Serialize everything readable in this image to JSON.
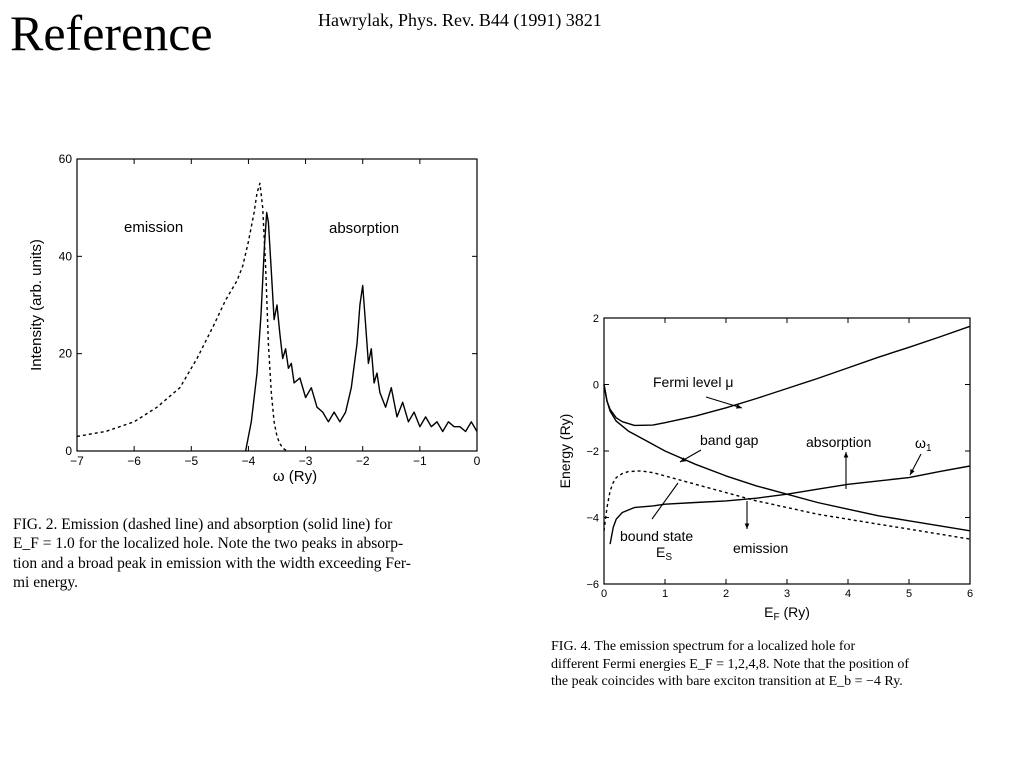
{
  "slide": {
    "title": "Reference",
    "citation": "Hawrylak, Phys. Rev. B44 (1991) 3821"
  },
  "fig2": {
    "caption_line1": "FIG. 2.  Emission (dashed line) and absorption (solid line) for",
    "caption_line2": "E_F = 1.0 for the localized hole.  Note the two peaks in absorp-",
    "caption_line3": "tion and a broad peak in emission with the width exceeding Fer-",
    "caption_line4": "mi energy."
  },
  "fig4": {
    "caption_line1": "FIG. 4.  The emission spectrum for a localized hole for",
    "caption_line2": "different Fermi energies E_F = 1,2,4,8.  Note that the position of",
    "caption_line3": "the peak coincides with bare exciton transition at E_b = −4 Ry."
  },
  "chart_data": [
    {
      "type": "line",
      "xlabel": "ω  (Ry)",
      "ylabel": "Intensity  (arb. units)",
      "xlim": [
        -7,
        0
      ],
      "ylim": [
        0,
        60
      ],
      "xticks": [
        -7,
        -6,
        -5,
        -4,
        -3,
        -2,
        -1,
        0
      ],
      "yticks": [
        0,
        20,
        40,
        60
      ],
      "annotations": [
        "emission",
        "absorption"
      ],
      "series": [
        {
          "style": "dashed",
          "x": [
            -7.0,
            -6.5,
            -6.0,
            -5.6,
            -5.2,
            -4.9,
            -4.6,
            -4.4,
            -4.2,
            -4.1,
            -4.0,
            -3.9,
            -3.85,
            -3.8,
            -3.75,
            -3.7,
            -3.65,
            -3.6,
            -3.55,
            -3.5,
            -3.45,
            -3.4,
            -3.35,
            -3.3
          ],
          "y": [
            3,
            4,
            6,
            9,
            13,
            19,
            26,
            31,
            35,
            38,
            43,
            49,
            53,
            55,
            50,
            38,
            22,
            12,
            6,
            3,
            1.5,
            0.6,
            0.2,
            0
          ]
        },
        {
          "style": "solid",
          "x": [
            -4.05,
            -3.95,
            -3.85,
            -3.78,
            -3.72,
            -3.68,
            -3.65,
            -3.6,
            -3.55,
            -3.5,
            -3.45,
            -3.4,
            -3.35,
            -3.3,
            -3.25,
            -3.2,
            -3.1,
            -3.0,
            -2.9,
            -2.8,
            -2.7,
            -2.6,
            -2.5,
            -2.4,
            -2.3,
            -2.2,
            -2.1,
            -2.05,
            -2.0,
            -1.95,
            -1.9,
            -1.85,
            -1.8,
            -1.75,
            -1.7,
            -1.6,
            -1.5,
            -1.4,
            -1.3,
            -1.2,
            -1.1,
            -1.0,
            -0.9,
            -0.8,
            -0.7,
            -0.6,
            -0.5,
            -0.4,
            -0.3,
            -0.2,
            -0.1,
            0.0
          ],
          "y": [
            0,
            6,
            16,
            28,
            42,
            49,
            47,
            37,
            27,
            30,
            24,
            19,
            21,
            17,
            18,
            14,
            15,
            11,
            13,
            9,
            8,
            6,
            8,
            6,
            8,
            13,
            22,
            30,
            34,
            26,
            18,
            21,
            14,
            16,
            12,
            9,
            13,
            7,
            10,
            6,
            8,
            5,
            7,
            5,
            6,
            4,
            6,
            5,
            5,
            4,
            6,
            4
          ]
        }
      ]
    },
    {
      "type": "line",
      "xlabel": "E_F (Ry)",
      "ylabel": "Energy (Ry)",
      "xlim": [
        0,
        6
      ],
      "ylim": [
        -6,
        2
      ],
      "xticks": [
        0,
        1,
        2,
        3,
        4,
        5,
        6
      ],
      "yticks": [
        -6,
        -4,
        -2,
        0,
        2
      ],
      "annotations": [
        "Fermi level μ",
        "band gap",
        "absorption",
        "ω1",
        "bound state",
        "E_S",
        "emission"
      ],
      "series": [
        {
          "style": "solid",
          "x": [
            0,
            0.05,
            0.1,
            0.2,
            0.3,
            0.5,
            0.8,
            1.0,
            1.5,
            2.0,
            2.5,
            3.0,
            3.5,
            4.0,
            4.5,
            5.0,
            5.5,
            6.0
          ],
          "y": [
            0,
            -0.5,
            -0.75,
            -1.0,
            -1.12,
            -1.23,
            -1.22,
            -1.15,
            -0.95,
            -0.7,
            -0.42,
            -0.12,
            0.18,
            0.5,
            0.82,
            1.12,
            1.43,
            1.75
          ]
        },
        {
          "style": "solid",
          "x": [
            0,
            0.05,
            0.1,
            0.2,
            0.4,
            0.7,
            1.0,
            1.5,
            2.0,
            2.5,
            3.0,
            3.5,
            4.0,
            4.5,
            5.0,
            5.5,
            6.0
          ],
          "y": [
            0,
            -0.5,
            -0.8,
            -1.1,
            -1.4,
            -1.7,
            -2.0,
            -2.4,
            -2.75,
            -3.05,
            -3.3,
            -3.55,
            -3.75,
            -3.95,
            -4.1,
            -4.25,
            -4.4
          ]
        },
        {
          "style": "solid",
          "x": [
            0.1,
            0.15,
            0.2,
            0.3,
            0.5,
            0.8,
            1.0,
            1.5,
            2.0,
            2.5,
            3.0,
            3.5,
            4.0,
            4.5,
            5.0,
            5.5,
            6.0
          ],
          "y": [
            -4.8,
            -4.3,
            -4.05,
            -3.85,
            -3.7,
            -3.65,
            -3.6,
            -3.55,
            -3.5,
            -3.42,
            -3.3,
            -3.15,
            -3.0,
            -2.9,
            -2.8,
            -2.62,
            -2.45
          ]
        },
        {
          "style": "dashed",
          "x": [
            0.0,
            0.05,
            0.1,
            0.15,
            0.2,
            0.3,
            0.4,
            0.6,
            0.8,
            1.0,
            1.5,
            2.0,
            2.5,
            3.0,
            3.5,
            4.0,
            4.5,
            5.0,
            5.5,
            6.0
          ],
          "y": [
            -4.4,
            -3.7,
            -3.2,
            -2.95,
            -2.8,
            -2.68,
            -2.62,
            -2.6,
            -2.65,
            -2.75,
            -3.0,
            -3.25,
            -3.5,
            -3.7,
            -3.9,
            -4.05,
            -4.2,
            -4.35,
            -4.5,
            -4.65
          ]
        }
      ]
    }
  ]
}
